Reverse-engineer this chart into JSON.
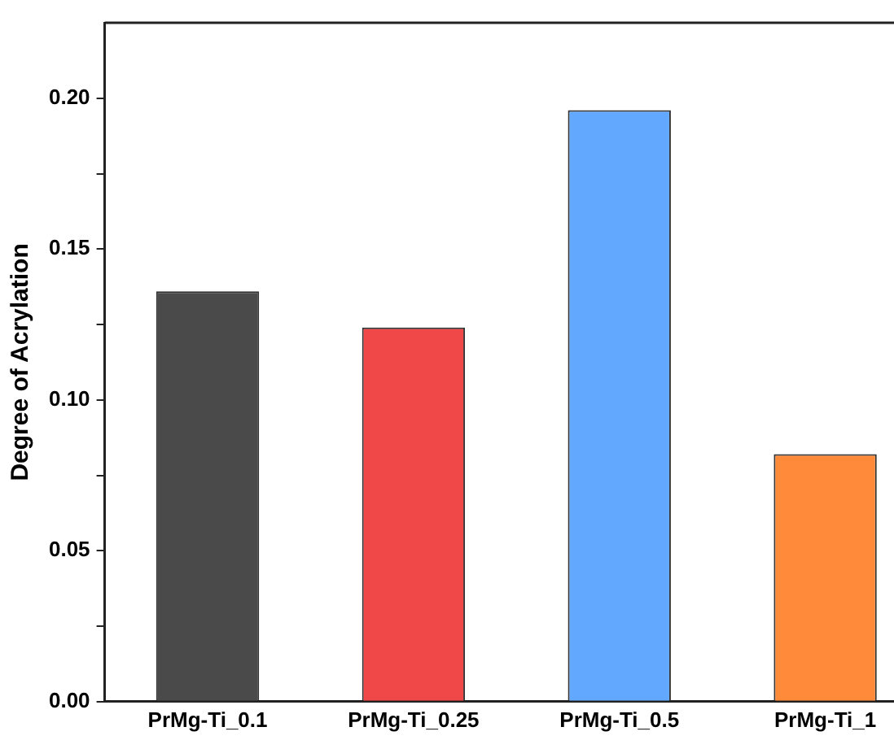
{
  "chart_data": {
    "type": "bar",
    "ylabel": "Degree of Acrylation",
    "categories": [
      "PrMg-Ti_0.1",
      "PrMg-Ti_0.25",
      "PrMg-Ti_0.5",
      "PrMg-Ti_1"
    ],
    "values": [
      0.136,
      0.124,
      0.196,
      0.082
    ],
    "colors": [
      "#4a4a4a",
      "#f04848",
      "#62a8ff",
      "#ff8a3a"
    ],
    "ylim": [
      0,
      0.225
    ],
    "yticks": [
      {
        "value": 0,
        "label": "0.00"
      },
      {
        "value": 0.025,
        "label": null
      },
      {
        "value": 0.05,
        "label": "0.05"
      },
      {
        "value": 0.075,
        "label": null
      },
      {
        "value": 0.1,
        "label": "0.10"
      },
      {
        "value": 0.125,
        "label": null
      },
      {
        "value": 0.15,
        "label": "0.15"
      },
      {
        "value": 0.175,
        "label": null
      },
      {
        "value": 0.2,
        "label": "0.20"
      }
    ],
    "grid": false,
    "legend": false
  }
}
